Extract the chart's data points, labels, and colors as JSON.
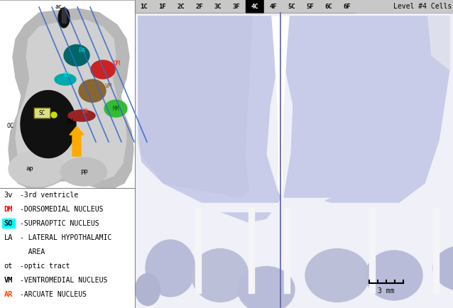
{
  "tab_labels": [
    "1C",
    "1F",
    "2C",
    "2F",
    "3C",
    "3F",
    "4C",
    "4F",
    "5C",
    "5F",
    "6C",
    "6F"
  ],
  "active_tab": "4C",
  "level_label": "Level #4 Cells",
  "legend": [
    {
      "abbr": "3v",
      "color": null,
      "bg": null,
      "bold": false,
      "text": "-3rd ventricle"
    },
    {
      "abbr": "DM",
      "color": "#ff0000",
      "bg": null,
      "bold": true,
      "text": "-DORSOMEDIAL NUCLEUS"
    },
    {
      "abbr": "SO",
      "color": "#000000",
      "bg": "#00ffff",
      "bold": true,
      "text": "-SUPRAOPTIC NUCLEUS"
    },
    {
      "abbr": "LA",
      "color": null,
      "bg": null,
      "bold": false,
      "text": "- LATERAL HYPOTHALAMIC"
    },
    {
      "abbr": "",
      "color": null,
      "bg": null,
      "bold": false,
      "text": "  AREA"
    },
    {
      "abbr": "ot",
      "color": null,
      "bg": null,
      "bold": false,
      "text": "-optic tract"
    },
    {
      "abbr": "VM",
      "color": "#000000",
      "bg": null,
      "bold": true,
      "text": "-VENTROMEDIAL NUCLEUS"
    },
    {
      "abbr": "AR",
      "color": "#ff4400",
      "bg": null,
      "bold": true,
      "text": "-ARCUATE NUCLEUS"
    }
  ],
  "bg_color": "#ffffff",
  "scale_bar_text": "3 mm",
  "micro_bg": "#e8eaf5",
  "tissue_color": "#c8cce8",
  "tissue_dark": "#9095b8",
  "lobe_color": "#b8bcd8",
  "white_gap": "#ffffff"
}
